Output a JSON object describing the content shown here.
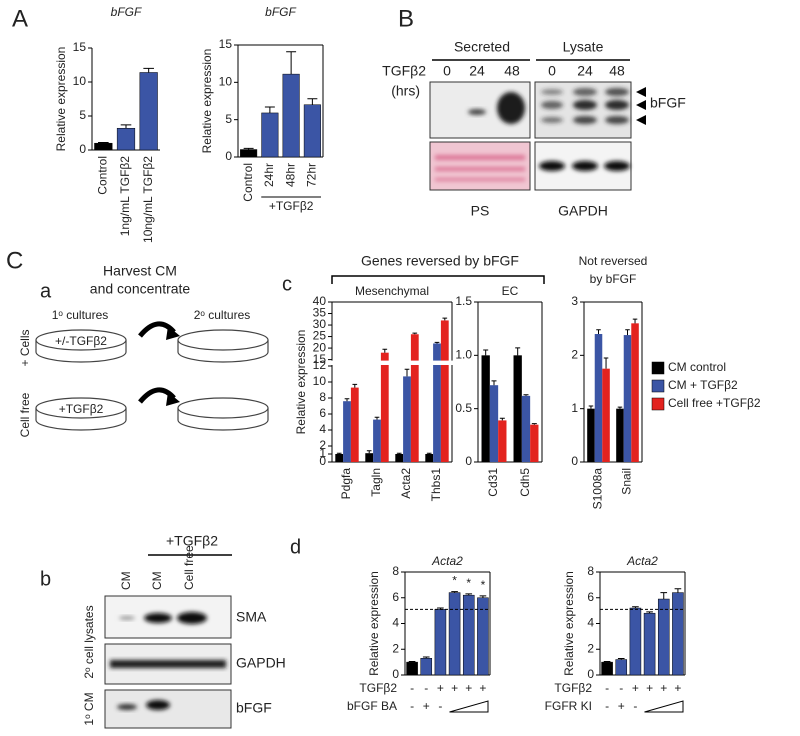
{
  "labels": {
    "A": "A",
    "B": "B",
    "C": "C",
    "a": "a",
    "b": "b",
    "c": "c",
    "d": "d"
  },
  "blot_B": {
    "secreted": "Secreted",
    "lysate": "Lysate",
    "treatment": [
      "TGFβ2",
      "(hrs)"
    ],
    "timepoints_secreted": [
      "0",
      "24",
      "48"
    ],
    "timepoints_lysate": [
      "0",
      "24",
      "48"
    ],
    "band": "bFGF",
    "lower_left": "PS",
    "lower_right": "GAPDH"
  },
  "diagram_a": {
    "title": [
      "Harvest CM",
      "and concentrate"
    ],
    "primary": "1ᵒ cultures",
    "secondary": "2ᵒ cultures",
    "row_cells": "+ Cells",
    "row_free": "Cell free",
    "dish_cells": "+/-TGFβ2",
    "dish_free": "+TGFβ2"
  },
  "blot_b": {
    "treatment": "+TGFβ2",
    "lanes": [
      "CM",
      "CM",
      "Cell free"
    ],
    "bands": [
      "SMA",
      "GAPDH",
      "bFGF"
    ],
    "side_lysates": "2ᵒ cell lysates",
    "side_cm": "1ᵒ CM"
  },
  "panel_c_header": "Genes reversed by bFGF",
  "chart_data": [
    {
      "type": "bar",
      "title": "bFGF",
      "ylabel": "Relative expression",
      "categories": [
        "Control",
        "1ng/mL TGFβ2",
        "10ng/mL TGFβ2"
      ],
      "values": [
        1,
        3.2,
        11.4
      ],
      "errors": [
        0.1,
        0.5,
        0.6
      ],
      "colors": [
        "#000000",
        "#3b55a5",
        "#3b55a5"
      ],
      "ylim": [
        0,
        15
      ],
      "yticks": [
        0,
        5,
        10,
        15
      ],
      "frame": false
    },
    {
      "type": "bar",
      "title": "bFGF",
      "ylabel": "Relative expression",
      "categories": [
        "Control",
        "24hr",
        "48hr",
        "72hr"
      ],
      "group_label": "+TGFβ2",
      "values": [
        1,
        5.9,
        11.1,
        7.0
      ],
      "errors": [
        0.15,
        0.8,
        3.0,
        0.8
      ],
      "colors": [
        "#000000",
        "#3b55a5",
        "#3b55a5",
        "#3b55a5"
      ],
      "ylim": [
        0,
        15
      ],
      "yticks": [
        0,
        5,
        10,
        15
      ],
      "frame": true
    },
    {
      "type": "grouped_bar",
      "title": "Mesenchymal",
      "ylabel": "Relative expression",
      "categories": [
        "Pdgfa",
        "Tagln",
        "Acta2",
        "Thbs1"
      ],
      "series": [
        {
          "name": "CM control",
          "color": "#000000",
          "values": [
            1,
            1.1,
            1,
            1
          ],
          "errors": [
            0.1,
            0.3,
            0.1,
            0.1
          ]
        },
        {
          "name": "CM + TGFβ2",
          "color": "#3b55a5",
          "values": [
            7.6,
            5.3,
            10.7,
            22
          ],
          "errors": [
            0.3,
            0.3,
            0.9,
            0.5
          ]
        },
        {
          "name": "Cell free +TGFβ2",
          "color": "#e3231f",
          "values": [
            9.3,
            18,
            26,
            32
          ],
          "errors": [
            0.4,
            1.5,
            0.5,
            1.0
          ]
        }
      ],
      "ylim": [
        0,
        40
      ],
      "yticks": [
        0,
        1,
        2,
        4,
        6,
        8,
        10,
        12,
        15,
        20,
        25,
        30,
        35,
        40
      ],
      "axis_break": [
        12,
        15
      ],
      "frame": true
    },
    {
      "type": "grouped_bar",
      "title": "EC",
      "categories": [
        "Cd31",
        "Cdh5"
      ],
      "series": [
        {
          "color": "#000000",
          "values": [
            1.0,
            1.0
          ],
          "errors": [
            0.05,
            0.07
          ]
        },
        {
          "color": "#3b55a5",
          "values": [
            0.72,
            0.62
          ],
          "errors": [
            0.04,
            0.01
          ]
        },
        {
          "color": "#e3231f",
          "values": [
            0.39,
            0.35
          ],
          "errors": [
            0.02,
            0.01
          ]
        }
      ],
      "ylim": [
        0,
        1.5
      ],
      "yticks": [
        0,
        0.5,
        {
          "value": 1,
          "label": "1.0"
        },
        1.5
      ],
      "frame": true
    },
    {
      "type": "grouped_bar",
      "title_lines": [
        "Not reversed",
        "by bFGF"
      ],
      "categories": [
        "S1008a",
        "Snail"
      ],
      "series": [
        {
          "color": "#000000",
          "values": [
            1.0,
            1.0
          ],
          "errors": [
            0.05,
            0.03
          ]
        },
        {
          "color": "#3b55a5",
          "values": [
            2.4,
            2.38
          ],
          "errors": [
            0.08,
            0.1
          ]
        },
        {
          "color": "#e3231f",
          "values": [
            1.75,
            2.6
          ],
          "errors": [
            0.2,
            0.08
          ]
        }
      ],
      "ylim": [
        0,
        3
      ],
      "yticks": [
        0,
        1,
        2,
        3
      ],
      "frame": true
    },
    {
      "type": "bar",
      "title": "Acta2",
      "ylabel": "Relative expression",
      "values": [
        1.0,
        1.3,
        5.1,
        6.4,
        6.2,
        6.0
      ],
      "errors": [
        0.05,
        0.1,
        0.1,
        0.08,
        0.1,
        0.15
      ],
      "colors": [
        "#000000",
        "#3b55a5",
        "#3b55a5",
        "#3b55a5",
        "#3b55a5",
        "#3b55a5"
      ],
      "stars": [
        null,
        null,
        null,
        "*",
        "*",
        "*"
      ],
      "reference_line": 5.1,
      "conditions": [
        {
          "label": "TGFβ2",
          "signs": [
            "-",
            "-",
            "+",
            "+",
            "+",
            "+"
          ]
        },
        {
          "label": "bFGF BA",
          "signs": [
            "-",
            "+",
            "-"
          ],
          "ramp": true
        }
      ],
      "ylim": [
        0,
        8
      ],
      "yticks": [
        0,
        2,
        4,
        6,
        8
      ],
      "frame": true
    },
    {
      "type": "bar",
      "title": "Acta2",
      "ylabel": "Relative expression",
      "values": [
        1.0,
        1.2,
        5.2,
        4.8,
        5.9,
        6.4
      ],
      "errors": [
        0.05,
        0.08,
        0.1,
        0.1,
        0.5,
        0.3
      ],
      "colors": [
        "#000000",
        "#3b55a5",
        "#3b55a5",
        "#3b55a5",
        "#3b55a5",
        "#3b55a5"
      ],
      "reference_line": 5.1,
      "conditions": [
        {
          "label": "TGFβ2",
          "signs": [
            "-",
            "-",
            "+",
            "+",
            "+",
            "+"
          ]
        },
        {
          "label": "FGFR KI",
          "signs": [
            "-",
            "+",
            "-"
          ],
          "ramp": true
        }
      ],
      "ylim": [
        0,
        8
      ],
      "yticks": [
        0,
        2,
        4,
        6,
        8
      ],
      "frame": true
    }
  ]
}
